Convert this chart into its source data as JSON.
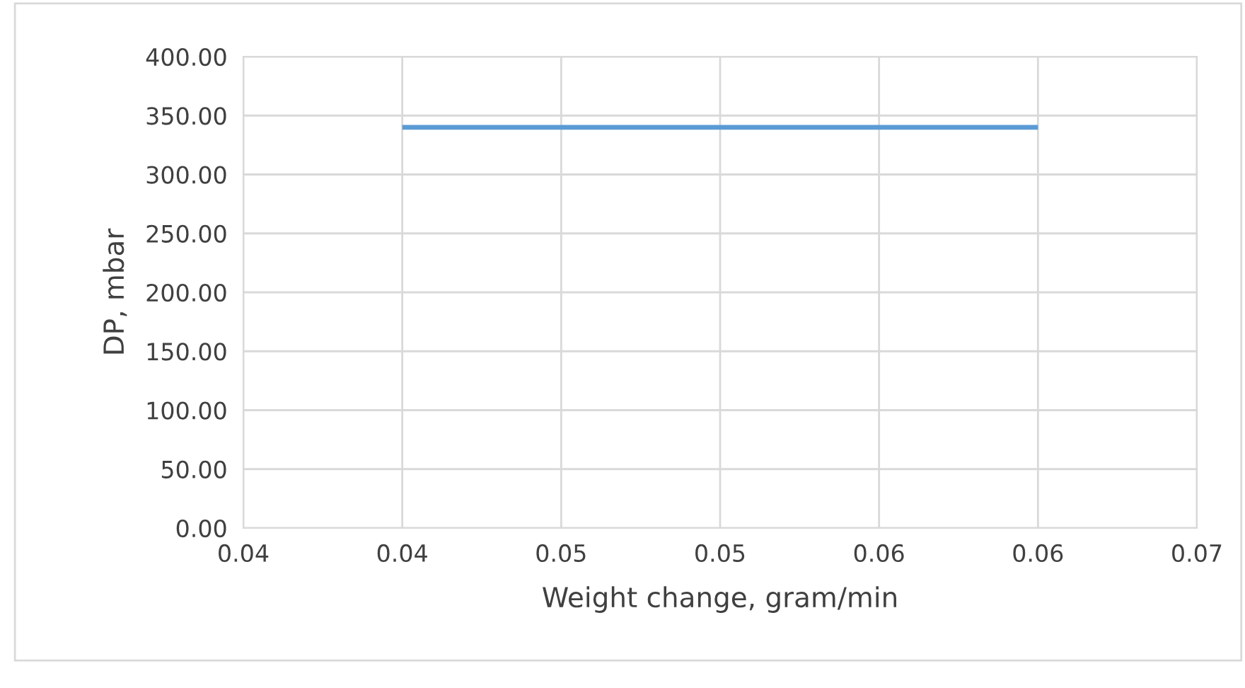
{
  "chart_data": {
    "type": "line",
    "xlabel": "Weight change, gram/min",
    "ylabel": "DP, mbar",
    "series": [
      {
        "color": "#5b9bd5",
        "x": [
          0.04,
          0.06
        ],
        "values": [
          340,
          340
        ]
      }
    ],
    "xlim": [
      0.035,
      0.065
    ],
    "xticks": [
      {
        "value": 0.035,
        "label": "0.04"
      },
      {
        "value": 0.04,
        "label": "0.04"
      },
      {
        "value": 0.045,
        "label": "0.05"
      },
      {
        "value": 0.05,
        "label": "0.05"
      },
      {
        "value": 0.055,
        "label": "0.06"
      },
      {
        "value": 0.06,
        "label": "0.06"
      },
      {
        "value": 0.065,
        "label": "0.07"
      }
    ],
    "ylim": [
      0,
      400
    ],
    "yticks": [
      {
        "value": 0,
        "label": "0.00"
      },
      {
        "value": 50,
        "label": "50.00"
      },
      {
        "value": 100,
        "label": "100.00"
      },
      {
        "value": 150,
        "label": "150.00"
      },
      {
        "value": 200,
        "label": "200.00"
      },
      {
        "value": 250,
        "label": "250.00"
      },
      {
        "value": 300,
        "label": "300.00"
      },
      {
        "value": 350,
        "label": "350.00"
      },
      {
        "value": 400,
        "label": "400.00"
      }
    ],
    "grid": true,
    "marker": "none",
    "line_style": "solid"
  }
}
